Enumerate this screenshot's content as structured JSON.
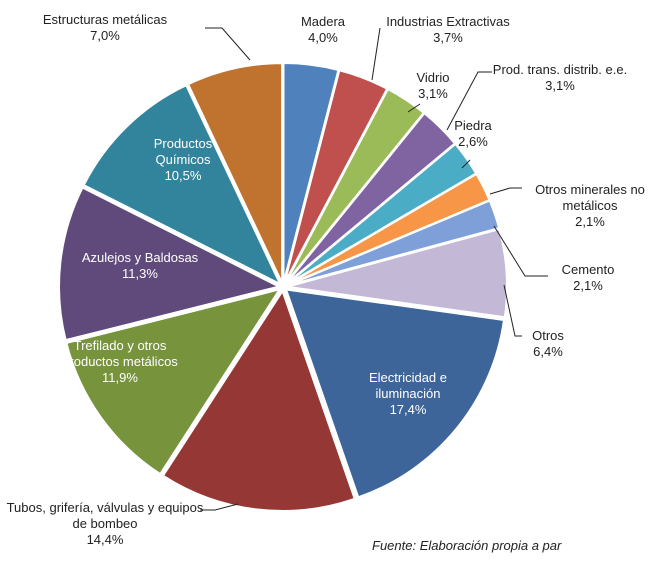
{
  "chart_data": {
    "type": "pie",
    "categories": [
      "Madera",
      "Industrias Extractivas",
      "Vidrio",
      "Prod. trans. distrib. e.e.",
      "Piedra",
      "Otros minerales no metálicos",
      "Cemento",
      "Otros",
      "Electricidad e iluminación",
      "Tubos, grifería, válvulas y equipos de bombeo",
      "Trefilado y otros productos metálicos",
      "Azulejos y Baldosas",
      "Productos Químicos",
      "Estructuras metálicas"
    ],
    "values": [
      4.0,
      3.7,
      3.1,
      3.1,
      2.6,
      2.1,
      2.1,
      6.4,
      17.4,
      14.4,
      11.9,
      11.3,
      10.5,
      7.0
    ],
    "value_labels": [
      "4,0%",
      "3,7%",
      "3,1%",
      "3,1%",
      "2,6%",
      "2,1%",
      "2,1%",
      "6,4%",
      "17,4%",
      "14,4%",
      "11,9%",
      "11,3%",
      "10,5%",
      "7,0%"
    ],
    "colors": [
      "#4f81bd",
      "#c0504d",
      "#9bbb59",
      "#8064a2",
      "#4bacc6",
      "#f79646",
      "#7f9fd8",
      "#c3b9d7",
      "#3d659a",
      "#953735",
      "#77933c",
      "#604a7b",
      "#31849b",
      "#c0722f"
    ],
    "source": "Fuente: Elaboración propia a par"
  }
}
